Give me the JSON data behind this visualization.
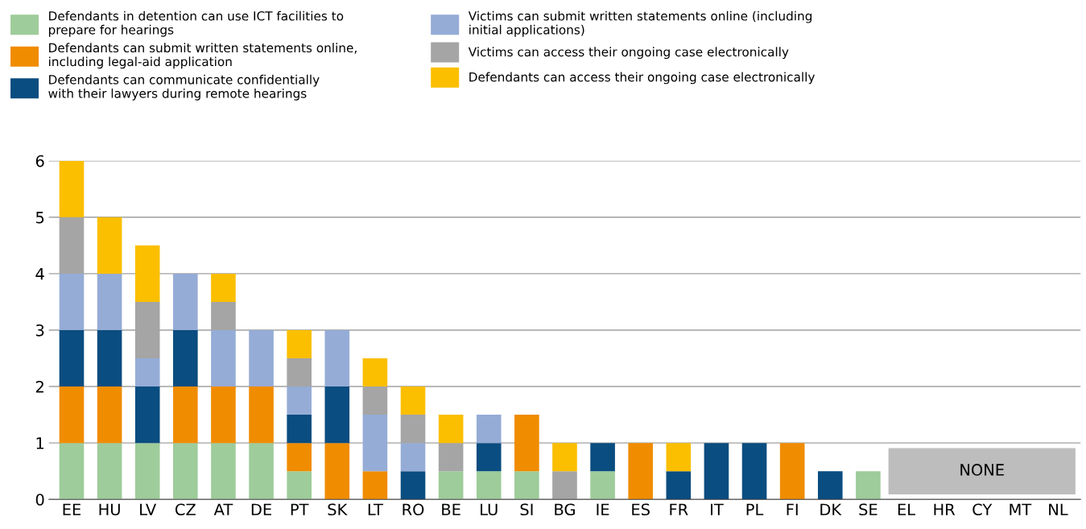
{
  "chart_data": {
    "type": "bar",
    "stacked": true,
    "categories": [
      "EE",
      "HU",
      "LV",
      "CZ",
      "AT",
      "DE",
      "PT",
      "SK",
      "LT",
      "RO",
      "BE",
      "LU",
      "SI",
      "BG",
      "IE",
      "ES",
      "FR",
      "IT",
      "PL",
      "FI",
      "DK",
      "SE",
      "EL",
      "HR",
      "CY",
      "MT",
      "NL"
    ],
    "series": [
      {
        "name": "Defendants in detention can use ICT facilities to\nprepare for hearings",
        "color": "#9ecc9a",
        "values": [
          1,
          1,
          1,
          1,
          1,
          1,
          0.5,
          0,
          0,
          0,
          0.5,
          0.5,
          0.5,
          0,
          0.5,
          0,
          0,
          0,
          0,
          0,
          0,
          0.5,
          0,
          0,
          0,
          0,
          0
        ]
      },
      {
        "name": "Defendants can submit written statements online,\nincluding legal-aid application",
        "color": "#f08c00",
        "values": [
          1,
          1,
          0,
          1,
          1,
          1,
          0.5,
          1,
          0.5,
          0,
          0,
          0,
          1,
          0,
          0,
          1,
          0,
          0,
          0,
          1,
          0,
          0,
          0,
          0,
          0,
          0,
          0
        ]
      },
      {
        "name": "Defendants can communicate confidentially\nwith their lawyers during remote hearings",
        "color": "#0a4d80",
        "values": [
          1,
          1,
          1,
          1,
          0,
          0,
          0.5,
          1,
          0,
          0.5,
          0,
          0.5,
          0,
          0,
          0.5,
          0,
          0.5,
          1,
          1,
          0,
          0.5,
          0,
          0,
          0,
          0,
          0,
          0
        ]
      },
      {
        "name": "Victims can submit written statements online (including\ninitial applications)",
        "color": "#95acd6",
        "values": [
          1,
          1,
          0.5,
          1,
          1,
          1,
          0.5,
          1,
          1,
          0.5,
          0,
          0.5,
          0,
          0,
          0,
          0,
          0,
          0,
          0,
          0,
          0,
          0,
          0,
          0,
          0,
          0,
          0
        ]
      },
      {
        "name": "Victims can access their ongoing case electronically",
        "color": "#a5a5a5",
        "values": [
          1,
          0,
          1,
          0,
          0.5,
          0,
          0.5,
          0,
          0.5,
          0.5,
          0.5,
          0,
          0,
          0.5,
          0,
          0,
          0,
          0,
          0,
          0,
          0,
          0,
          0,
          0,
          0,
          0,
          0
        ]
      },
      {
        "name": "Defendants can access their ongoing case electronically",
        "color": "#fbbf00",
        "values": [
          1,
          1,
          1,
          0,
          0.5,
          0,
          0.5,
          0,
          0.5,
          0.5,
          0.5,
          0,
          0,
          0.5,
          0,
          0,
          0.5,
          0,
          0,
          0,
          0,
          0,
          0,
          0,
          0,
          0,
          0
        ]
      }
    ],
    "ylim": [
      0,
      6
    ],
    "yticks": [
      0,
      1,
      2,
      3,
      4,
      5,
      6
    ],
    "grid": "y",
    "legend": "top",
    "annotations": [
      "NONE"
    ]
  }
}
